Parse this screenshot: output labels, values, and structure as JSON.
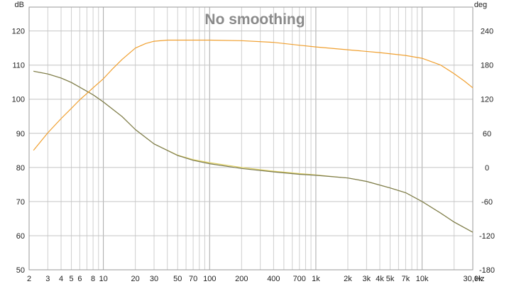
{
  "chart_data": {
    "type": "line",
    "title": "No smoothing",
    "x_scale": "log",
    "x_unit": "Hz",
    "xlim": [
      2,
      30000
    ],
    "x_ticks": [
      {
        "v": 2,
        "label": "2"
      },
      {
        "v": 3,
        "label": "3"
      },
      {
        "v": 4,
        "label": "4"
      },
      {
        "v": 5,
        "label": "5"
      },
      {
        "v": 6,
        "label": "6"
      },
      {
        "v": 8,
        "label": "8"
      },
      {
        "v": 10,
        "label": "10"
      },
      {
        "v": 20,
        "label": "20"
      },
      {
        "v": 30,
        "label": "30"
      },
      {
        "v": 50,
        "label": "50"
      },
      {
        "v": 70,
        "label": "70"
      },
      {
        "v": 100,
        "label": "100"
      },
      {
        "v": 200,
        "label": "200"
      },
      {
        "v": 400,
        "label": "400"
      },
      {
        "v": 700,
        "label": "700"
      },
      {
        "v": 1000,
        "label": "1k"
      },
      {
        "v": 2000,
        "label": "2k"
      },
      {
        "v": 3000,
        "label": "3k"
      },
      {
        "v": 4000,
        "label": "4k"
      },
      {
        "v": 5000,
        "label": "5k"
      },
      {
        "v": 7000,
        "label": "7k"
      },
      {
        "v": 10000,
        "label": "10k"
      },
      {
        "v": 30000,
        "label": "30,0k"
      }
    ],
    "y_left": {
      "unit": "dB",
      "lim": [
        50,
        127
      ],
      "ticks": [
        50,
        60,
        70,
        80,
        90,
        100,
        110,
        120
      ]
    },
    "y_right": {
      "unit": "deg",
      "lim": [
        -180,
        282
      ],
      "ticks": [
        -180,
        -120,
        -60,
        0,
        60,
        120,
        180,
        240
      ]
    },
    "grid": true,
    "series": [
      {
        "axis": "left",
        "color": "#e0d060",
        "x": [
          2.2,
          3,
          4,
          5,
          6,
          8,
          10,
          15,
          20,
          30,
          50,
          70,
          100,
          200,
          400,
          700,
          1000,
          2000,
          3000,
          5000,
          7000,
          10000,
          15000,
          20000,
          30000
        ],
        "values": [
          108.2,
          107.4,
          106.2,
          104.9,
          103.5,
          101.3,
          99.2,
          94.9,
          91.1,
          86.9,
          83.6,
          82.3,
          81.4,
          80.0,
          78.9,
          78.2,
          77.8,
          76.9,
          75.9,
          74.0,
          72.6,
          70.0,
          66.6,
          64.0,
          61.0
        ]
      },
      {
        "axis": "left",
        "color": "#7a7a50",
        "x": [
          2.2,
          3,
          4,
          5,
          6,
          8,
          10,
          15,
          20,
          30,
          50,
          70,
          100,
          200,
          400,
          700,
          1000,
          2000,
          3000,
          5000,
          7000,
          10000,
          15000,
          20000,
          30000
        ],
        "values": [
          108.2,
          107.4,
          106.2,
          104.9,
          103.5,
          101.3,
          99.2,
          94.9,
          91.1,
          86.9,
          83.5,
          82.1,
          81.1,
          79.7,
          78.7,
          78.0,
          77.7,
          76.9,
          75.9,
          74.0,
          72.6,
          70.0,
          66.6,
          64.0,
          61.0
        ]
      },
      {
        "axis": "right",
        "color": "#f0a030",
        "x": [
          2.2,
          3,
          4,
          5,
          6,
          7,
          8,
          10,
          12,
          15,
          20,
          25,
          30,
          40,
          50,
          100,
          200,
          400,
          700,
          1000,
          2000,
          4000,
          7000,
          10000,
          15000,
          20000,
          25000,
          30000
        ],
        "values": [
          30,
          61,
          86,
          104,
          119,
          130,
          140,
          156,
          172,
          190,
          210,
          218,
          222,
          224,
          224,
          224,
          223,
          220,
          215,
          212,
          207,
          202,
          197,
          192,
          180,
          165,
          152,
          140
        ]
      }
    ]
  }
}
